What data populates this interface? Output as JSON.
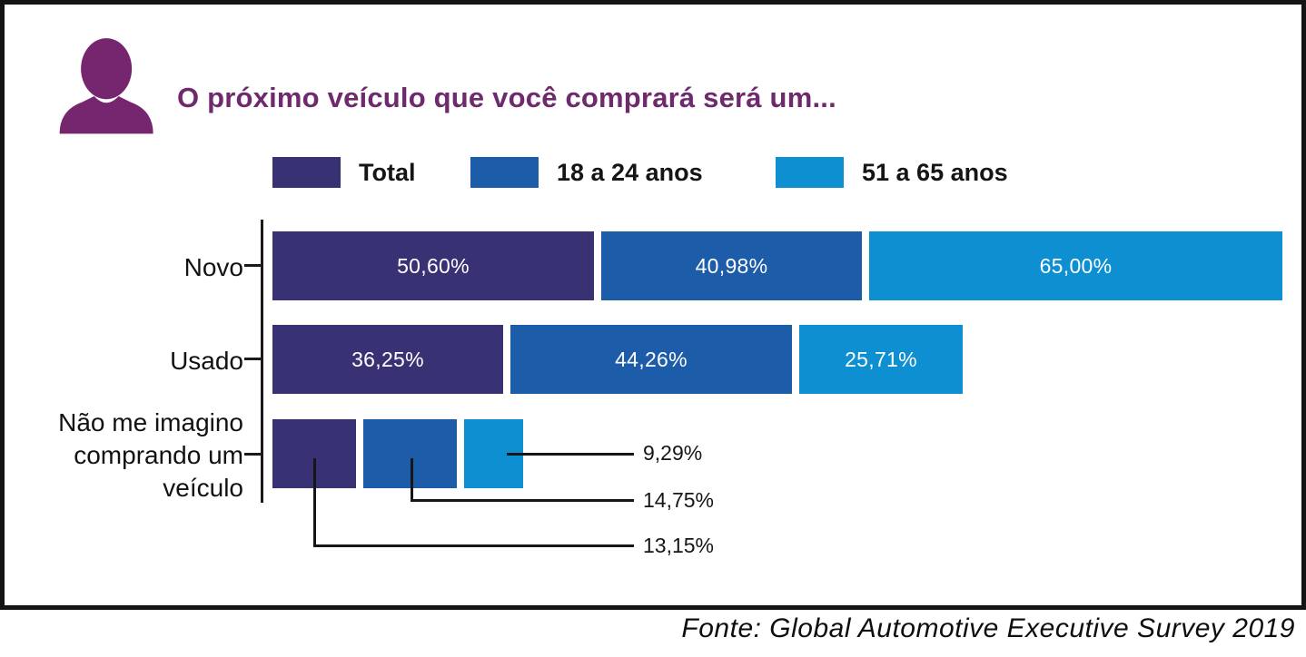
{
  "header": {
    "title": "O próximo veículo que você comprará será um..."
  },
  "icon": {
    "name": "person-icon",
    "color": "#76266f"
  },
  "legend": {
    "items": [
      {
        "label": "Total",
        "color": "#383275"
      },
      {
        "label": "18 a 24 anos",
        "color": "#1c5ca8"
      },
      {
        "label": "51 a 65 anos",
        "color": "#0d8fd2"
      }
    ]
  },
  "chart_data": {
    "type": "bar",
    "orientation": "horizontal",
    "title": "O próximo veículo que você comprará será um...",
    "unit": "%",
    "value_format": "comma-decimal percent",
    "categories": [
      "Novo",
      "Usado",
      "Não me imagino comprando um veículo"
    ],
    "categories_lines": [
      [
        "Novo"
      ],
      [
        "Usado"
      ],
      [
        "Não me imagino",
        "comprando um",
        "veículo"
      ]
    ],
    "series": [
      {
        "name": "Total",
        "color": "#383275",
        "values": [
          50.6,
          36.25,
          13.15
        ]
      },
      {
        "name": "18 a 24 anos",
        "color": "#1c5ca8",
        "values": [
          40.98,
          44.26,
          14.75
        ]
      },
      {
        "name": "51 a 65 anos",
        "color": "#0d8fd2",
        "values": [
          65.0,
          25.71,
          9.29
        ]
      }
    ],
    "display": [
      [
        "50,60%",
        "40,98%",
        "65,00%"
      ],
      [
        "36,25%",
        "44,26%",
        "25,71%"
      ],
      [
        "13,15%",
        "14,75%",
        "9,29%"
      ]
    ],
    "axis_max": 65,
    "grid": false,
    "legend_position": "top"
  },
  "footer": {
    "source": "Fonte: Global Automotive Executive Survey 2019"
  }
}
